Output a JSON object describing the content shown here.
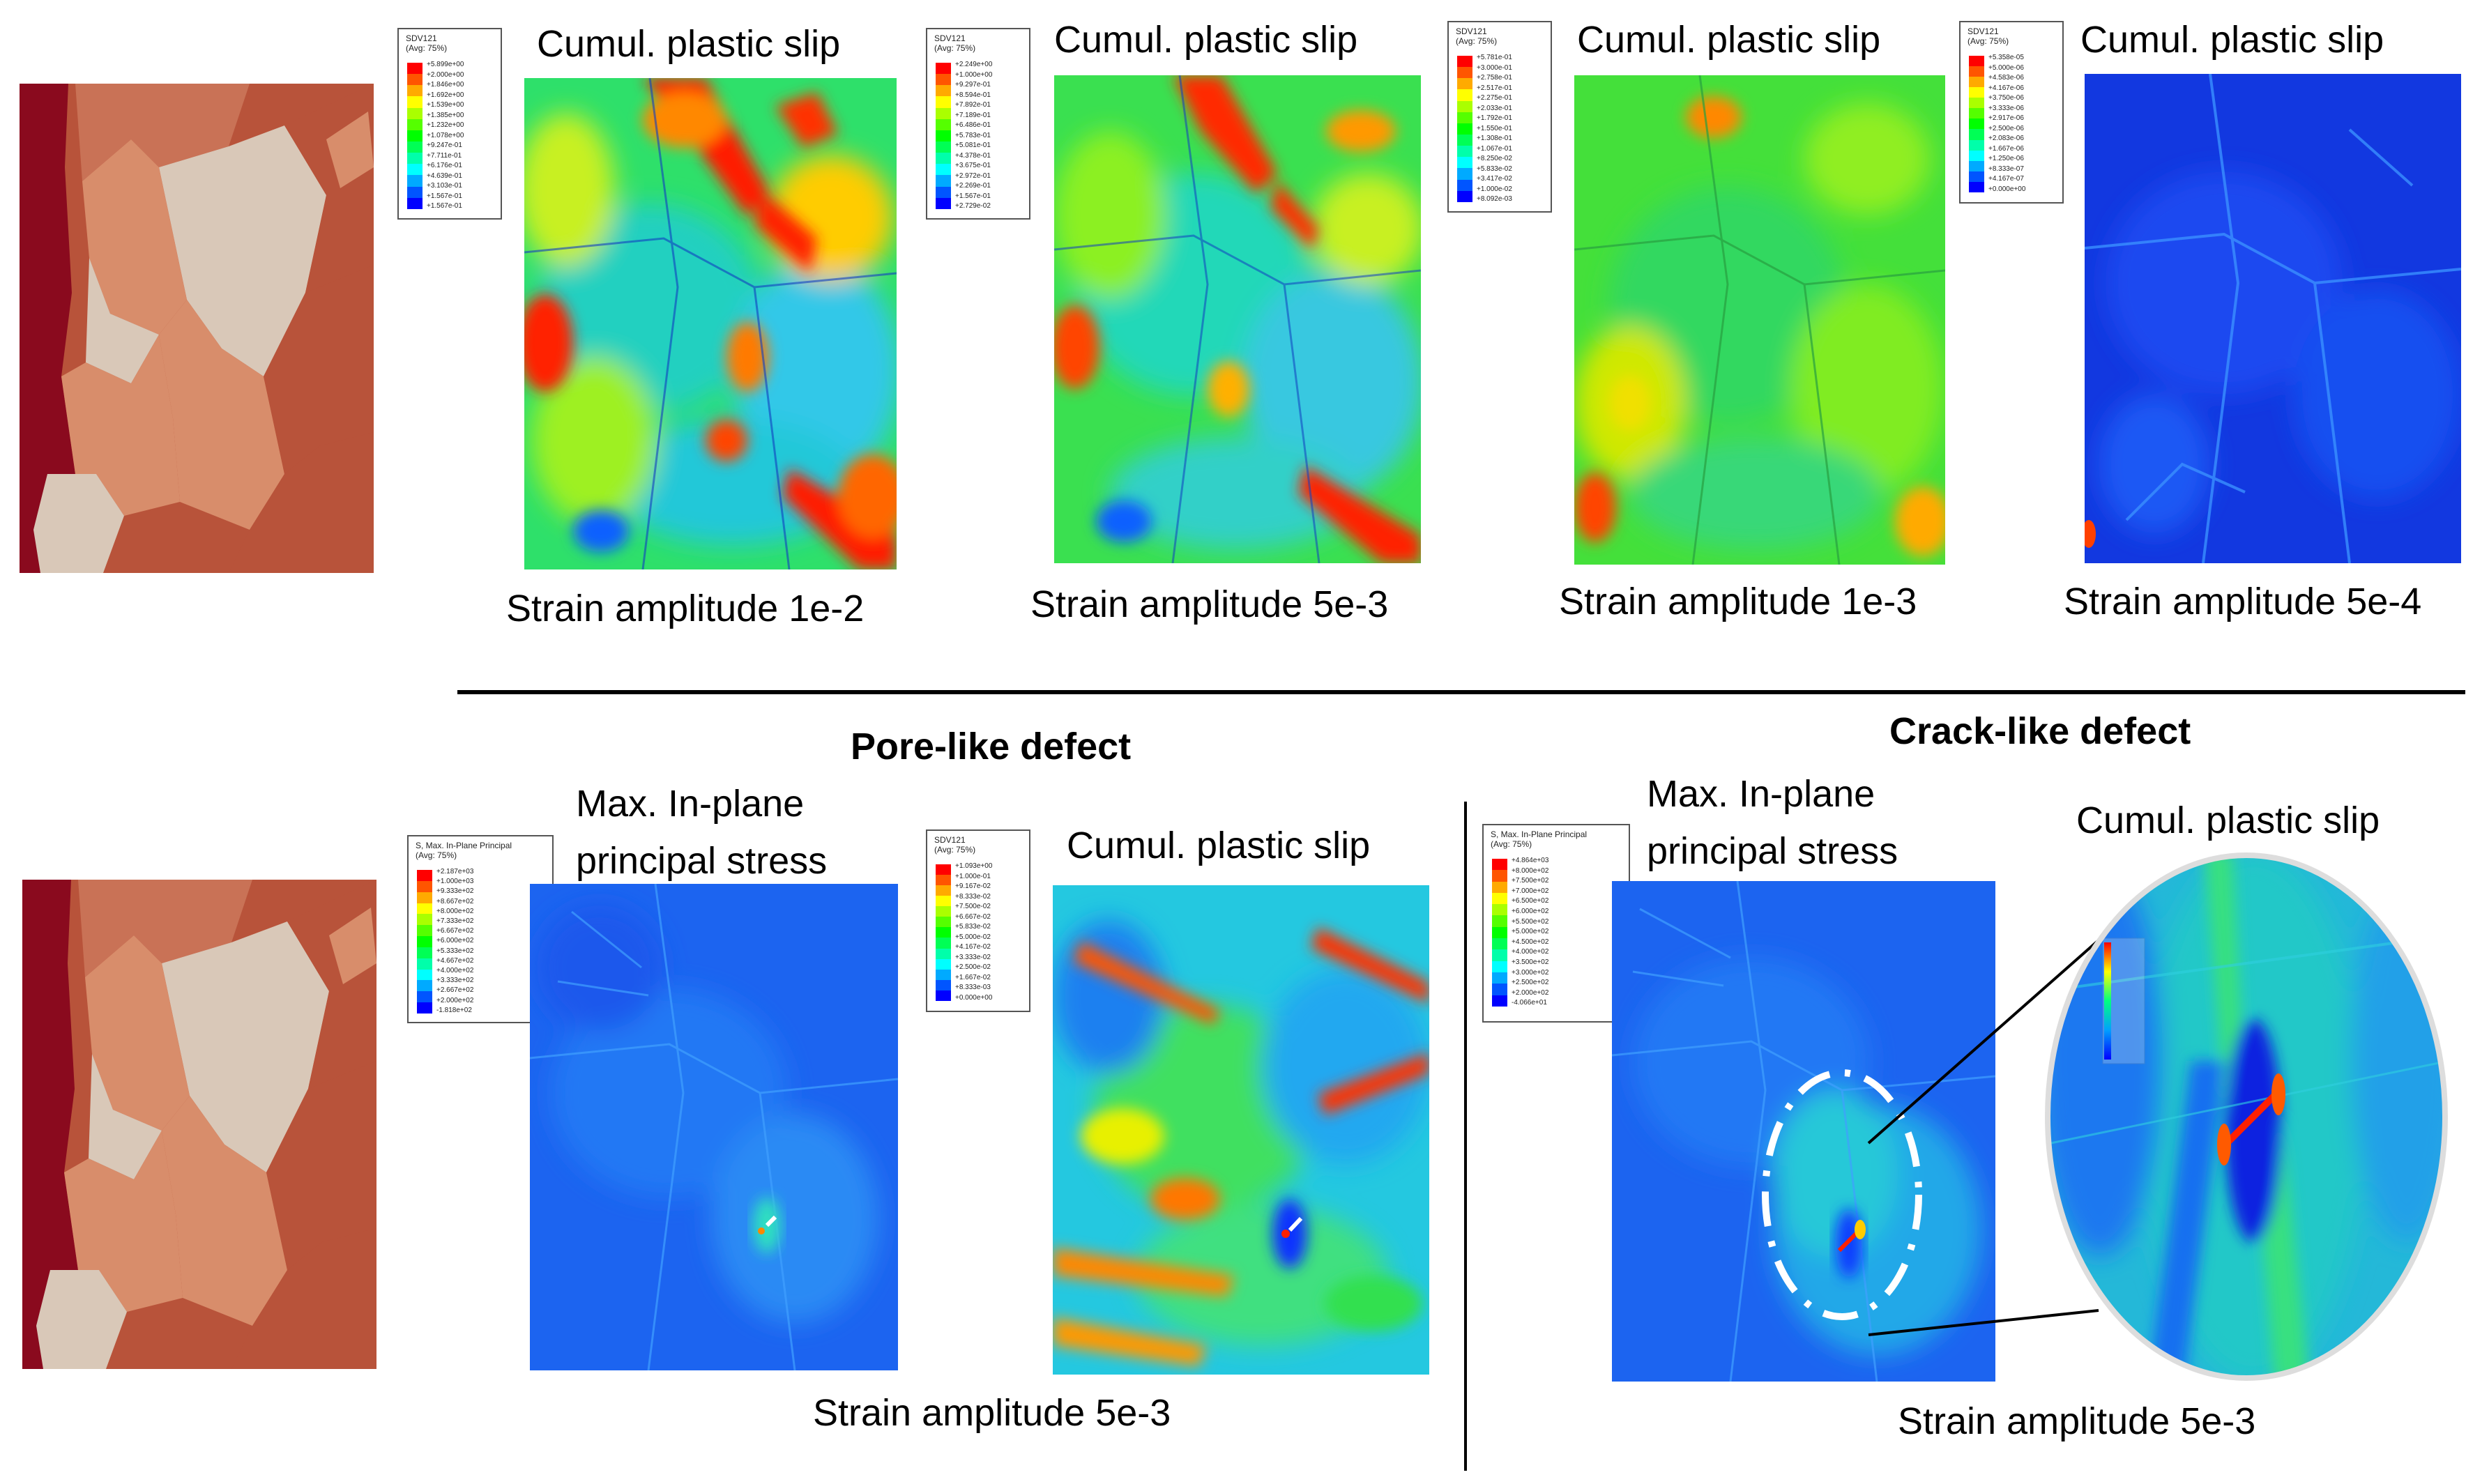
{
  "colors": {
    "contour_scale": [
      "#ff0000",
      "#ff5500",
      "#ffaa00",
      "#ffff00",
      "#aaff00",
      "#55ff00",
      "#00ff00",
      "#00ff55",
      "#00ffaa",
      "#00ffff",
      "#00aaff",
      "#0055ff",
      "#0000ff"
    ],
    "grain_colors": [
      "#8a0a1e",
      "#b8533a",
      "#d88d6b",
      "#d9c8b8"
    ]
  },
  "top_row": {
    "titles": [
      "Cumul. plastic slip",
      "Cumul. plastic slip",
      "Cumul. plastic slip",
      "Cumul. plastic slip"
    ],
    "captions": [
      "Strain amplitude 1e-2",
      "Strain amplitude 5e-3",
      "Strain amplitude 1e-3",
      "Strain amplitude 5e-4"
    ],
    "legends": [
      {
        "var": "SDV121",
        "avg": "(Avg: 75%)",
        "values": [
          "+5.899e+00",
          "+2.000e+00",
          "+1.846e+00",
          "+1.692e+00",
          "+1.539e+00",
          "+1.385e+00",
          "+1.232e+00",
          "+1.078e+00",
          "+9.247e-01",
          "+7.711e-01",
          "+6.176e-01",
          "+4.639e-01",
          "+3.103e-01",
          "+1.567e-01",
          "+1.567e-01"
        ]
      },
      {
        "var": "SDV121",
        "avg": "(Avg: 75%)",
        "values": [
          "+2.249e+00",
          "+1.000e+00",
          "+9.297e-01",
          "+8.594e-01",
          "+7.892e-01",
          "+7.189e-01",
          "+6.486e-01",
          "+5.783e-01",
          "+5.081e-01",
          "+4.378e-01",
          "+3.675e-01",
          "+2.972e-01",
          "+2.269e-01",
          "+1.567e-01",
          "+2.729e-02"
        ]
      },
      {
        "var": "SDV121",
        "avg": "(Avg: 75%)",
        "values": [
          "+5.781e-01",
          "+3.000e-01",
          "+2.758e-01",
          "+2.517e-01",
          "+2.275e-01",
          "+2.033e-01",
          "+1.792e-01",
          "+1.550e-01",
          "+1.308e-01",
          "+1.067e-01",
          "+8.250e-02",
          "+5.833e-02",
          "+3.417e-02",
          "+1.000e-02",
          "+8.092e-03"
        ]
      },
      {
        "var": "SDV121",
        "avg": "(Avg: 75%)",
        "values": [
          "+5.358e-05",
          "+5.000e-06",
          "+4.583e-06",
          "+4.167e-06",
          "+3.750e-06",
          "+3.333e-06",
          "+2.917e-06",
          "+2.500e-06",
          "+2.083e-06",
          "+1.667e-06",
          "+1.250e-06",
          "+8.333e-07",
          "+4.167e-07",
          "+0.000e+00"
        ]
      }
    ]
  },
  "bottom_row": {
    "pore_heading": "Pore-like defect",
    "crack_heading": "Crack-like defect",
    "pore_stress_title": "Max. In-plane principal stress",
    "pore_slip_title": "Cumul. plastic slip",
    "crack_stress_title": "Max. In-plane principal stress",
    "crack_slip_title": "Cumul. plastic slip",
    "pore_caption": "Strain amplitude 5e-3",
    "crack_caption": "Strain amplitude 5e-3",
    "legends": [
      {
        "var": "S, Max. In-Plane Principal",
        "avg": "(Avg: 75%)",
        "values": [
          "+2.187e+03",
          "+1.000e+03",
          "+9.333e+02",
          "+8.667e+02",
          "+8.000e+02",
          "+7.333e+02",
          "+6.667e+02",
          "+6.000e+02",
          "+5.333e+02",
          "+4.667e+02",
          "+4.000e+02",
          "+3.333e+02",
          "+2.667e+02",
          "+2.000e+02",
          "-1.818e+02"
        ]
      },
      {
        "var": "SDV121",
        "avg": "(Avg: 75%)",
        "values": [
          "+1.093e+00",
          "+1.000e-01",
          "+9.167e-02",
          "+8.333e-02",
          "+7.500e-02",
          "+6.667e-02",
          "+5.833e-02",
          "+5.000e-02",
          "+4.167e-02",
          "+3.333e-02",
          "+2.500e-02",
          "+1.667e-02",
          "+8.333e-03",
          "+0.000e+00"
        ]
      },
      {
        "var": "S, Max. In-Plane Principal",
        "avg": "(Avg: 75%)",
        "values": [
          "+4.864e+03",
          "+8.000e+02",
          "+7.500e+02",
          "+7.000e+02",
          "+6.500e+02",
          "+6.000e+02",
          "+5.500e+02",
          "+5.000e+02",
          "+4.500e+02",
          "+4.000e+02",
          "+3.500e+02",
          "+3.000e+02",
          "+2.500e+02",
          "+2.000e+02",
          "-4.066e+01"
        ]
      }
    ]
  }
}
